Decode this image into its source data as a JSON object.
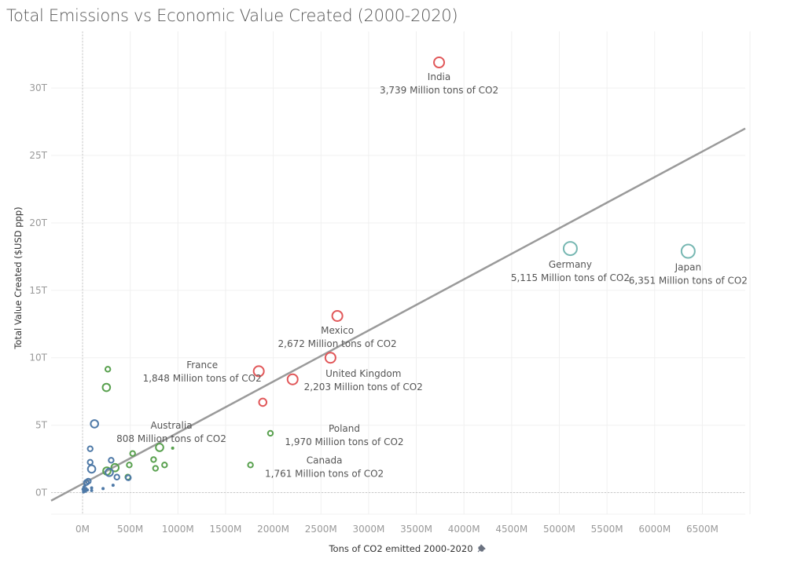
{
  "title": "Total Emissions vs Economic Value Created (2000-2020)",
  "chart_data": {
    "type": "scatter",
    "title": "Total Emissions vs Economic Value Created (2000-2020)",
    "xlabel": "Tons of CO2 emitted 2000-2020",
    "ylabel": "Total Value Created ($USD ppp)",
    "xlim": [
      -330,
      6950
    ],
    "ylim": [
      -1.6,
      34.2
    ],
    "x_unit": "Million tons",
    "y_unit": "Trillion USD",
    "x_ticks": [
      {
        "value": 0,
        "label": "0M"
      },
      {
        "value": 500,
        "label": "500M"
      },
      {
        "value": 1000,
        "label": "1000M"
      },
      {
        "value": 1500,
        "label": "1500M"
      },
      {
        "value": 2000,
        "label": "2000M"
      },
      {
        "value": 2500,
        "label": "2500M"
      },
      {
        "value": 3000,
        "label": "3000M"
      },
      {
        "value": 3500,
        "label": "3500M"
      },
      {
        "value": 4000,
        "label": "4000M"
      },
      {
        "value": 4500,
        "label": "4500M"
      },
      {
        "value": 5000,
        "label": "5000M"
      },
      {
        "value": 5500,
        "label": "5500M"
      },
      {
        "value": 6000,
        "label": "6000M"
      },
      {
        "value": 6500,
        "label": "6500M"
      }
    ],
    "y_ticks": [
      {
        "value": 0,
        "label": "0T"
      },
      {
        "value": 5,
        "label": "5T"
      },
      {
        "value": 10,
        "label": "10T"
      },
      {
        "value": 15,
        "label": "15T"
      },
      {
        "value": 20,
        "label": "20T"
      },
      {
        "value": 25,
        "label": "25T"
      },
      {
        "value": 30,
        "label": "30T"
      }
    ],
    "grid": true,
    "trend_line": {
      "x": [
        -330,
        6950
      ],
      "y": [
        -0.6,
        27.0
      ]
    },
    "axis_pin_icon": "pin-icon",
    "groups": [
      {
        "name": "red",
        "color": "#e15759"
      },
      {
        "name": "teal",
        "color": "#76b7b2"
      },
      {
        "name": "green",
        "color": "#59a14f"
      },
      {
        "name": "blue",
        "color": "#4e79a7"
      }
    ],
    "points": [
      {
        "label": "India",
        "annotation": "3,739 Million tons of CO2",
        "x": 3739,
        "y": 31.9,
        "size": 3,
        "group": "red",
        "ann_pos": "below"
      },
      {
        "label": "Mexico",
        "annotation": "2,672 Million tons of CO2",
        "x": 2672,
        "y": 13.1,
        "size": 3,
        "group": "red",
        "ann_pos": "below"
      },
      {
        "label": "",
        "annotation": "",
        "x": 2600,
        "y": 10.0,
        "size": 3,
        "group": "red",
        "ann_pos": "none"
      },
      {
        "label": "United Kingdom",
        "annotation": "2,203 Million tons of CO2",
        "x": 2203,
        "y": 8.4,
        "size": 3,
        "group": "red",
        "ann_pos": "right-below"
      },
      {
        "label": "France",
        "annotation": "1,848 Million tons of CO2",
        "x": 1848,
        "y": 9.0,
        "size": 3,
        "group": "red",
        "ann_pos": "left"
      },
      {
        "label": "",
        "annotation": "",
        "x": 1890,
        "y": 6.7,
        "size": 2,
        "group": "red",
        "ann_pos": "none"
      },
      {
        "label": "Germany",
        "annotation": "5,115 Million tons of CO2",
        "x": 5115,
        "y": 18.1,
        "size": 4,
        "group": "teal",
        "ann_pos": "below"
      },
      {
        "label": "Japan",
        "annotation": "6,351 Million tons of CO2",
        "x": 6351,
        "y": 17.9,
        "size": 4,
        "group": "teal",
        "ann_pos": "below"
      },
      {
        "label": "Poland",
        "annotation": "1,970 Million tons of CO2",
        "x": 1970,
        "y": 4.4,
        "size": 1,
        "group": "green",
        "ann_pos": "right"
      },
      {
        "label": "Canada",
        "annotation": "1,761 Million tons of CO2",
        "x": 1761,
        "y": 2.05,
        "size": 1,
        "group": "green",
        "ann_pos": "right"
      },
      {
        "label": "Australia",
        "annotation": "808 Million tons of CO2",
        "x": 808,
        "y": 3.35,
        "size": 2,
        "group": "green",
        "ann_pos": "above"
      },
      {
        "label": "",
        "annotation": "",
        "x": 265,
        "y": 9.15,
        "size": 1,
        "group": "green",
        "ann_pos": "none"
      },
      {
        "label": "",
        "annotation": "",
        "x": 250,
        "y": 7.8,
        "size": 2,
        "group": "green",
        "ann_pos": "none"
      },
      {
        "label": "",
        "annotation": "",
        "x": 945,
        "y": 3.3,
        "size": 0,
        "group": "green",
        "ann_pos": "none"
      },
      {
        "label": "",
        "annotation": "",
        "x": 525,
        "y": 2.9,
        "size": 1,
        "group": "green",
        "ann_pos": "none"
      },
      {
        "label": "",
        "annotation": "",
        "x": 745,
        "y": 2.45,
        "size": 1,
        "group": "green",
        "ann_pos": "none"
      },
      {
        "label": "",
        "annotation": "",
        "x": 860,
        "y": 2.05,
        "size": 1,
        "group": "green",
        "ann_pos": "none"
      },
      {
        "label": "",
        "annotation": "",
        "x": 765,
        "y": 1.8,
        "size": 1,
        "group": "green",
        "ann_pos": "none"
      },
      {
        "label": "",
        "annotation": "",
        "x": 490,
        "y": 2.05,
        "size": 1,
        "group": "green",
        "ann_pos": "none"
      },
      {
        "label": "",
        "annotation": "",
        "x": 340,
        "y": 1.85,
        "size": 2,
        "group": "green",
        "ann_pos": "none"
      },
      {
        "label": "",
        "annotation": "",
        "x": 255,
        "y": 1.6,
        "size": 2,
        "group": "green",
        "ann_pos": "none"
      },
      {
        "label": "",
        "annotation": "",
        "x": 475,
        "y": 1.15,
        "size": 1,
        "group": "green",
        "ann_pos": "none"
      },
      {
        "label": "",
        "annotation": "",
        "x": 125,
        "y": 5.1,
        "size": 2,
        "group": "blue",
        "ann_pos": "none"
      },
      {
        "label": "",
        "annotation": "",
        "x": 80,
        "y": 3.25,
        "size": 1,
        "group": "blue",
        "ann_pos": "none"
      },
      {
        "label": "",
        "annotation": "",
        "x": 300,
        "y": 2.4,
        "size": 1,
        "group": "blue",
        "ann_pos": "none"
      },
      {
        "label": "",
        "annotation": "",
        "x": 80,
        "y": 2.25,
        "size": 1,
        "group": "blue",
        "ann_pos": "none"
      },
      {
        "label": "",
        "annotation": "",
        "x": 95,
        "y": 1.75,
        "size": 2,
        "group": "blue",
        "ann_pos": "none"
      },
      {
        "label": "",
        "annotation": "",
        "x": 280,
        "y": 1.5,
        "size": 2,
        "group": "blue",
        "ann_pos": "none"
      },
      {
        "label": "",
        "annotation": "",
        "x": 360,
        "y": 1.15,
        "size": 1,
        "group": "blue",
        "ann_pos": "none"
      },
      {
        "label": "",
        "annotation": "",
        "x": 480,
        "y": 1.1,
        "size": 1,
        "group": "blue",
        "ann_pos": "none"
      },
      {
        "label": "",
        "annotation": "",
        "x": 60,
        "y": 0.85,
        "size": 1,
        "group": "blue",
        "ann_pos": "none"
      },
      {
        "label": "",
        "annotation": "",
        "x": 40,
        "y": 0.75,
        "size": 1,
        "group": "blue",
        "ann_pos": "none"
      },
      {
        "label": "",
        "annotation": "",
        "x": 95,
        "y": 0.35,
        "size": 0,
        "group": "blue",
        "ann_pos": "none"
      },
      {
        "label": "",
        "annotation": "",
        "x": 215,
        "y": 0.3,
        "size": 0,
        "group": "blue",
        "ann_pos": "none"
      },
      {
        "label": "",
        "annotation": "",
        "x": 320,
        "y": 0.55,
        "size": 0,
        "group": "blue",
        "ann_pos": "none"
      },
      {
        "label": "",
        "annotation": "",
        "x": 25,
        "y": 0.55,
        "size": 0,
        "group": "blue",
        "ann_pos": "none"
      },
      {
        "label": "",
        "annotation": "",
        "x": 15,
        "y": 0.4,
        "size": 0,
        "group": "blue",
        "ann_pos": "none"
      },
      {
        "label": "",
        "annotation": "",
        "x": 35,
        "y": 0.3,
        "size": 0,
        "group": "blue",
        "ann_pos": "none"
      },
      {
        "label": "",
        "annotation": "",
        "x": 20,
        "y": 0.15,
        "size": 0,
        "group": "blue",
        "ann_pos": "none"
      },
      {
        "label": "",
        "annotation": "",
        "x": 50,
        "y": 0.2,
        "size": 0,
        "group": "blue",
        "ann_pos": "none"
      },
      {
        "label": "",
        "annotation": "",
        "x": 10,
        "y": 0.05,
        "size": 0,
        "group": "blue",
        "ann_pos": "none"
      },
      {
        "label": "",
        "annotation": "",
        "x": 30,
        "y": 0.1,
        "size": 0,
        "group": "blue",
        "ann_pos": "none"
      },
      {
        "label": "",
        "annotation": "",
        "x": 95,
        "y": 0.15,
        "size": 0,
        "group": "blue",
        "ann_pos": "none"
      },
      {
        "label": "",
        "annotation": "",
        "x": 5,
        "y": 0.25,
        "size": 0,
        "group": "blue",
        "ann_pos": "none"
      }
    ]
  }
}
